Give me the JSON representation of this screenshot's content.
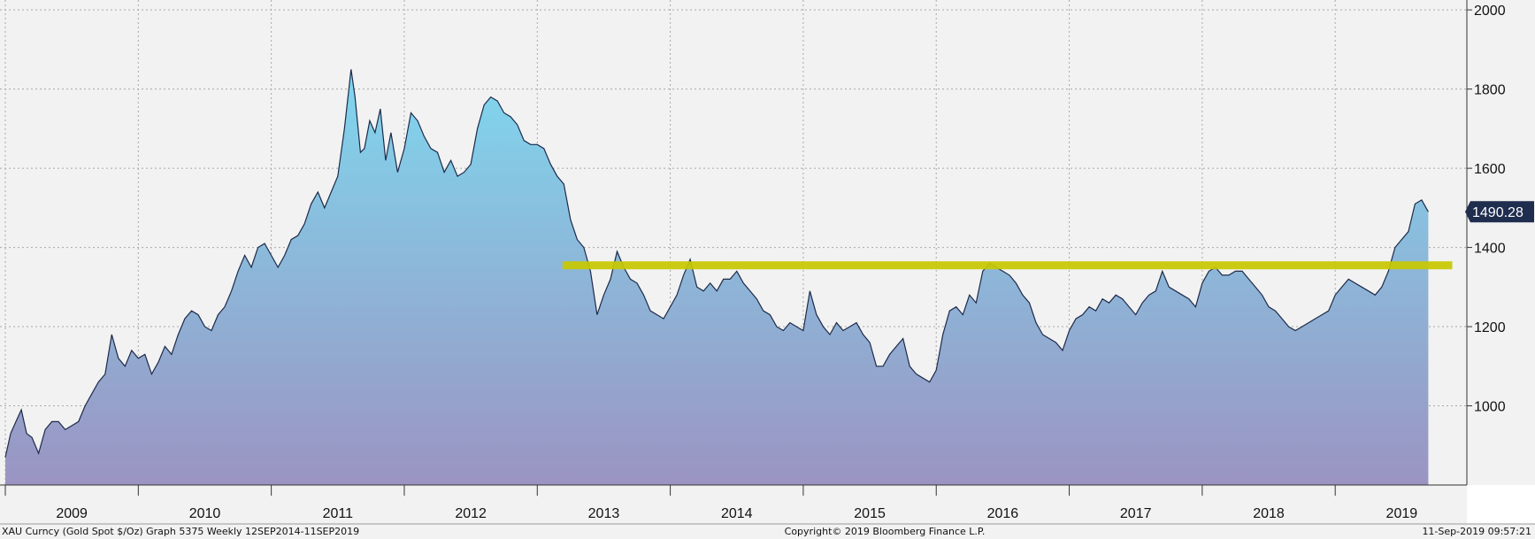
{
  "chart_data": {
    "type": "area",
    "title": "",
    "xlabel": "",
    "ylabel": "",
    "ylim": [
      800,
      2025
    ],
    "xlim": [
      2008.96,
      2019.99
    ],
    "y_ticks": [
      "1000",
      "1200",
      "1400",
      "1600",
      "1800",
      "2000"
    ],
    "x_ticks": [
      "2009",
      "2010",
      "2011",
      "2012",
      "2013",
      "2014",
      "2015",
      "2016",
      "2017",
      "2018",
      "2019"
    ],
    "grid": true,
    "legend": "none",
    "series": [
      {
        "x": [
          2009.0,
          2009.04,
          2009.08,
          2009.12,
          2009.16,
          2009.2,
          2009.25,
          2009.3,
          2009.35,
          2009.4,
          2009.45,
          2009.5,
          2009.55,
          2009.6,
          2009.65,
          2009.7,
          2009.75,
          2009.8,
          2009.85,
          2009.9,
          2009.95,
          2010.0,
          2010.05,
          2010.1,
          2010.15,
          2010.2,
          2010.25,
          2010.3,
          2010.35,
          2010.4,
          2010.45,
          2010.5,
          2010.55,
          2010.6,
          2010.65,
          2010.7,
          2010.75,
          2010.8,
          2010.85,
          2010.9,
          2010.95,
          2011.0,
          2011.05,
          2011.1,
          2011.15,
          2011.2,
          2011.25,
          2011.3,
          2011.35,
          2011.4,
          2011.45,
          2011.5,
          2011.55,
          2011.6,
          2011.63,
          2011.67,
          2011.7,
          2011.74,
          2011.78,
          2011.82,
          2011.86,
          2011.9,
          2011.95,
          2012.0,
          2012.05,
          2012.1,
          2012.15,
          2012.2,
          2012.25,
          2012.3,
          2012.35,
          2012.4,
          2012.45,
          2012.5,
          2012.55,
          2012.6,
          2012.65,
          2012.7,
          2012.75,
          2012.8,
          2012.85,
          2012.9,
          2012.95,
          2013.0,
          2013.05,
          2013.1,
          2013.15,
          2013.2,
          2013.25,
          2013.3,
          2013.35,
          2013.4,
          2013.45,
          2013.5,
          2013.55,
          2013.6,
          2013.65,
          2013.7,
          2013.75,
          2013.8,
          2013.85,
          2013.9,
          2013.95,
          2014.0,
          2014.05,
          2014.1,
          2014.15,
          2014.2,
          2014.25,
          2014.3,
          2014.35,
          2014.4,
          2014.45,
          2014.5,
          2014.55,
          2014.6,
          2014.65,
          2014.7,
          2014.75,
          2014.8,
          2014.85,
          2014.9,
          2014.95,
          2015.0,
          2015.05,
          2015.1,
          2015.15,
          2015.2,
          2015.25,
          2015.3,
          2015.35,
          2015.4,
          2015.45,
          2015.5,
          2015.55,
          2015.6,
          2015.65,
          2015.7,
          2015.75,
          2015.8,
          2015.85,
          2015.9,
          2015.95,
          2016.0,
          2016.05,
          2016.1,
          2016.15,
          2016.2,
          2016.25,
          2016.3,
          2016.35,
          2016.4,
          2016.45,
          2016.5,
          2016.55,
          2016.6,
          2016.65,
          2016.7,
          2016.75,
          2016.8,
          2016.85,
          2016.9,
          2016.95,
          2017.0,
          2017.05,
          2017.1,
          2017.15,
          2017.2,
          2017.25,
          2017.3,
          2017.35,
          2017.4,
          2017.45,
          2017.5,
          2017.55,
          2017.6,
          2017.65,
          2017.7,
          2017.75,
          2017.8,
          2017.85,
          2017.9,
          2017.95,
          2018.0,
          2018.05,
          2018.1,
          2018.15,
          2018.2,
          2018.25,
          2018.3,
          2018.35,
          2018.4,
          2018.45,
          2018.5,
          2018.55,
          2018.6,
          2018.65,
          2018.7,
          2018.75,
          2018.8,
          2018.85,
          2018.9,
          2018.95,
          2019.0,
          2019.05,
          2019.1,
          2019.15,
          2019.2,
          2019.25,
          2019.3,
          2019.35,
          2019.4,
          2019.45,
          2019.5,
          2019.55,
          2019.6,
          2019.65,
          2019.7
        ],
        "values": [
          870,
          930,
          960,
          990,
          930,
          920,
          880,
          940,
          960,
          960,
          940,
          950,
          960,
          1000,
          1030,
          1060,
          1080,
          1180,
          1120,
          1100,
          1140,
          1120,
          1130,
          1080,
          1110,
          1150,
          1130,
          1180,
          1220,
          1240,
          1230,
          1200,
          1190,
          1230,
          1250,
          1290,
          1340,
          1380,
          1350,
          1400,
          1410,
          1380,
          1350,
          1380,
          1420,
          1430,
          1460,
          1510,
          1540,
          1500,
          1540,
          1580,
          1700,
          1850,
          1780,
          1640,
          1650,
          1720,
          1690,
          1750,
          1620,
          1690,
          1590,
          1650,
          1740,
          1720,
          1680,
          1650,
          1640,
          1590,
          1620,
          1580,
          1590,
          1610,
          1700,
          1760,
          1780,
          1770,
          1740,
          1730,
          1710,
          1670,
          1660,
          1660,
          1650,
          1610,
          1580,
          1560,
          1470,
          1420,
          1400,
          1340,
          1230,
          1280,
          1320,
          1390,
          1350,
          1320,
          1310,
          1280,
          1240,
          1230,
          1220,
          1250,
          1280,
          1330,
          1370,
          1300,
          1290,
          1310,
          1290,
          1320,
          1320,
          1340,
          1310,
          1290,
          1270,
          1240,
          1230,
          1200,
          1190,
          1210,
          1200,
          1190,
          1290,
          1230,
          1200,
          1180,
          1210,
          1190,
          1200,
          1210,
          1180,
          1160,
          1100,
          1100,
          1130,
          1150,
          1170,
          1100,
          1080,
          1070,
          1060,
          1090,
          1180,
          1240,
          1250,
          1230,
          1280,
          1260,
          1340,
          1360,
          1350,
          1340,
          1330,
          1310,
          1280,
          1260,
          1210,
          1180,
          1170,
          1160,
          1140,
          1190,
          1220,
          1230,
          1250,
          1240,
          1270,
          1260,
          1280,
          1270,
          1250,
          1230,
          1260,
          1280,
          1290,
          1340,
          1300,
          1290,
          1280,
          1270,
          1250,
          1310,
          1340,
          1350,
          1330,
          1330,
          1340,
          1340,
          1320,
          1300,
          1280,
          1250,
          1240,
          1220,
          1200,
          1190,
          1200,
          1210,
          1220,
          1230,
          1240,
          1280,
          1300,
          1320,
          1310,
          1300,
          1290,
          1280,
          1300,
          1340,
          1400,
          1420,
          1440,
          1510,
          1520,
          1490
        ]
      }
    ],
    "last_value": "1490.28",
    "resistance_level": 1355,
    "resistance_start": 2013.19,
    "footer_left": "XAU Curncy (Gold Spot  $/Oz) Graph 5375  Weekly 12SEP2014-11SEP2019",
    "footer_center": "Copyright© 2019 Bloomberg Finance L.P.",
    "footer_right": "11-Sep-2019 09:57:21",
    "colors": {
      "background": "#f2f2f2",
      "area_top": "#7fd7ee",
      "area_bottom": "#9b94c2",
      "line": "#1d2a4a",
      "resistance": "#c8c800",
      "label_bg": "#1f2d4e"
    }
  }
}
